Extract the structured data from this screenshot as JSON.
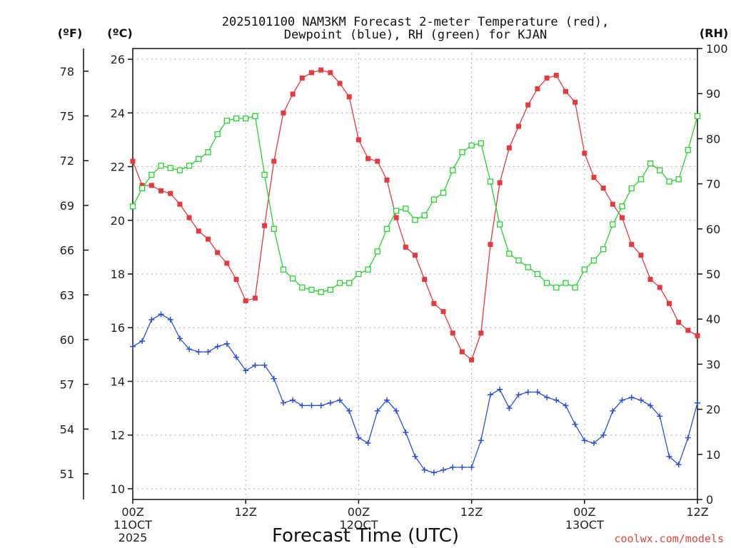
{
  "chart_data": {
    "type": "line",
    "title_line1": "2025101100 NAM3KM Forecast 2-meter Temperature (red),",
    "title_line2": "Dewpoint (blue), RH (green) for KJAN",
    "xlabel": "Forecast Time (UTC)",
    "credit": "coolwx.com/models",
    "axis_units": {
      "fahrenheit": "(ºF)",
      "celsius": "(ºC)",
      "rh": "(RH)"
    },
    "celsius_ticks": [
      "10",
      "12",
      "14",
      "16",
      "18",
      "20",
      "22",
      "24",
      "26"
    ],
    "fahrenheit_ticks": [
      "51",
      "54",
      "57",
      "60",
      "63",
      "66",
      "69",
      "72",
      "75",
      "78"
    ],
    "rh_ticks": [
      "0",
      "10",
      "20",
      "30",
      "40",
      "50",
      "60",
      "70",
      "80",
      "90",
      "100"
    ],
    "x_ticks": [
      {
        "hour": 0,
        "label": "00Z",
        "sub1": "11OCT",
        "sub2": "2025"
      },
      {
        "hour": 12,
        "label": "12Z",
        "sub1": "",
        "sub2": ""
      },
      {
        "hour": 24,
        "label": "00Z",
        "sub1": "12OCT",
        "sub2": ""
      },
      {
        "hour": 36,
        "label": "12Z",
        "sub1": "",
        "sub2": ""
      },
      {
        "hour": 48,
        "label": "00Z",
        "sub1": "13OCT",
        "sub2": ""
      },
      {
        "hour": 60,
        "label": "12Z",
        "sub1": "",
        "sub2": ""
      }
    ],
    "x_range_hours": [
      0,
      60
    ],
    "celsius_range": [
      9.6,
      26.4
    ],
    "rh_range": [
      0,
      100
    ],
    "grid": true,
    "series": [
      {
        "name": "2-meter Temperature",
        "unit": "°C",
        "color": "#e8383f",
        "marker": "square-filled",
        "values": [
          22.2,
          21.3,
          21.3,
          21.1,
          21.0,
          20.6,
          20.1,
          19.6,
          19.3,
          18.8,
          18.4,
          17.8,
          17.0,
          17.1,
          19.8,
          22.2,
          24.0,
          24.7,
          25.3,
          25.5,
          25.6,
          25.5,
          25.1,
          24.6,
          23.0,
          22.3,
          22.2,
          21.5,
          20.1,
          19.0,
          18.7,
          17.8,
          16.9,
          16.6,
          15.8,
          15.1,
          14.8,
          15.8,
          19.1,
          21.4,
          22.7,
          23.5,
          24.3,
          24.9,
          25.3,
          25.4,
          24.8,
          24.4,
          22.5,
          21.6,
          21.2,
          20.6,
          20.1,
          19.1,
          18.7,
          17.8,
          17.5,
          16.9,
          16.2,
          15.9,
          15.7
        ]
      },
      {
        "name": "Dewpoint",
        "unit": "°C",
        "color": "#2a4fe0",
        "marker": "plus",
        "values": [
          15.3,
          15.5,
          16.3,
          16.5,
          16.3,
          15.6,
          15.2,
          15.1,
          15.1,
          15.3,
          15.4,
          14.9,
          14.4,
          14.6,
          14.6,
          14.1,
          13.2,
          13.3,
          13.1,
          13.1,
          13.1,
          13.2,
          13.3,
          12.9,
          11.9,
          11.7,
          12.9,
          13.3,
          12.9,
          12.1,
          11.2,
          10.7,
          10.6,
          10.7,
          10.8,
          10.8,
          10.8,
          11.8,
          13.5,
          13.7,
          13.0,
          13.5,
          13.6,
          13.6,
          13.4,
          13.3,
          13.1,
          12.4,
          11.8,
          11.7,
          12.0,
          12.9,
          13.3,
          13.4,
          13.3,
          13.1,
          12.7,
          11.2,
          10.9,
          11.9,
          13.2
        ]
      },
      {
        "name": "RH",
        "unit": "%",
        "color": "#22d62a",
        "marker": "square-open",
        "values": [
          65,
          69,
          72,
          74,
          73.5,
          73,
          74,
          75.5,
          77,
          81,
          84,
          84.5,
          84.5,
          85,
          72,
          60,
          51,
          49,
          47,
          46.5,
          46,
          46.5,
          48,
          48,
          50,
          51,
          55,
          60,
          64,
          64.5,
          62,
          63,
          66.5,
          68,
          73,
          77,
          78.5,
          79,
          70.5,
          61,
          54.5,
          53,
          51.5,
          50,
          48,
          47,
          48,
          47,
          51,
          53,
          55.5,
          61,
          65,
          69,
          71,
          74.5,
          73,
          70.5,
          71,
          77.5,
          85
        ]
      }
    ]
  }
}
